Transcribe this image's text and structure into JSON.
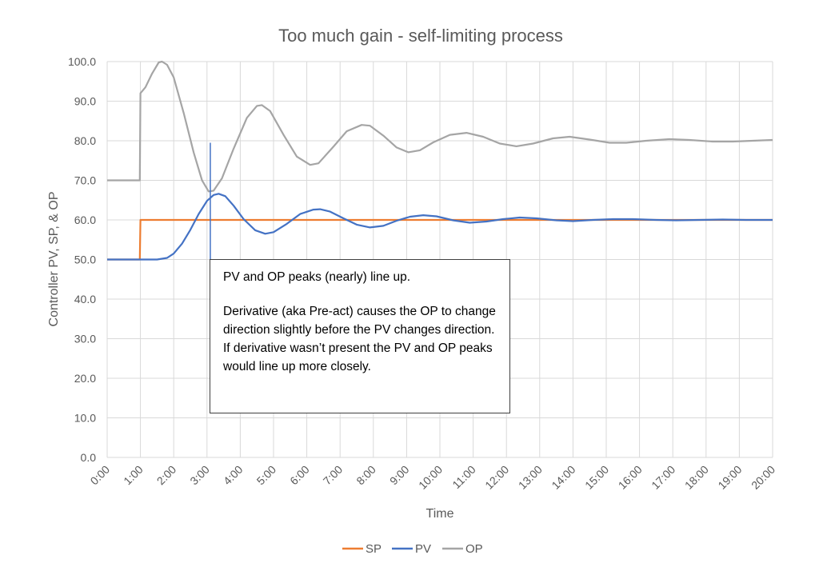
{
  "chart_data": {
    "type": "line",
    "title": "Too much gain - self-limiting process",
    "xlabel": "Time",
    "ylabel": "Controller PV, SP, & OP",
    "ylim": [
      0,
      100
    ],
    "yticks": [
      "0.0",
      "10.0",
      "20.0",
      "30.0",
      "40.0",
      "50.0",
      "60.0",
      "70.0",
      "80.0",
      "90.0",
      "100.0"
    ],
    "xlim": [
      0,
      20
    ],
    "xticks": [
      "0:00",
      "1:00",
      "2:00",
      "3:00",
      "4:00",
      "5:00",
      "6:00",
      "7:00",
      "8:00",
      "9:00",
      "10:00",
      "11:00",
      "12:00",
      "13:00",
      "14:00",
      "15:00",
      "16:00",
      "17:00",
      "18:00",
      "19:00",
      "20:00"
    ],
    "legend_position": "bottom",
    "series": [
      {
        "name": "SP",
        "color": "#ed7d31",
        "points": [
          [
            0,
            50
          ],
          [
            0.98,
            50
          ],
          [
            1.0,
            60
          ],
          [
            20,
            60
          ]
        ]
      },
      {
        "name": "PV",
        "color": "#4472c4",
        "points": [
          [
            0,
            50
          ],
          [
            1.0,
            50
          ],
          [
            1.5,
            50
          ],
          [
            1.8,
            50.4
          ],
          [
            2.0,
            51.5
          ],
          [
            2.25,
            54
          ],
          [
            2.5,
            57.5
          ],
          [
            2.75,
            61.5
          ],
          [
            3.0,
            64.8
          ],
          [
            3.2,
            66.3
          ],
          [
            3.35,
            66.6
          ],
          [
            3.55,
            66
          ],
          [
            3.8,
            63.6
          ],
          [
            4.1,
            60.2
          ],
          [
            4.45,
            57.4
          ],
          [
            4.75,
            56.5
          ],
          [
            5.0,
            56.9
          ],
          [
            5.4,
            59
          ],
          [
            5.8,
            61.5
          ],
          [
            6.2,
            62.6
          ],
          [
            6.4,
            62.7
          ],
          [
            6.7,
            62.1
          ],
          [
            7.1,
            60.4
          ],
          [
            7.5,
            58.8
          ],
          [
            7.9,
            58.1
          ],
          [
            8.3,
            58.5
          ],
          [
            8.7,
            59.8
          ],
          [
            9.1,
            60.8
          ],
          [
            9.5,
            61.2
          ],
          [
            9.9,
            60.9
          ],
          [
            10.4,
            59.9
          ],
          [
            10.9,
            59.3
          ],
          [
            11.4,
            59.6
          ],
          [
            11.9,
            60.2
          ],
          [
            12.4,
            60.6
          ],
          [
            12.9,
            60.4
          ],
          [
            13.5,
            59.9
          ],
          [
            14.0,
            59.7
          ],
          [
            14.6,
            60.0
          ],
          [
            15.2,
            60.2
          ],
          [
            15.8,
            60.2
          ],
          [
            16.5,
            60.0
          ],
          [
            17.1,
            59.9
          ],
          [
            17.8,
            60.0
          ],
          [
            18.5,
            60.1
          ],
          [
            19.2,
            60.0
          ],
          [
            20,
            60.0
          ]
        ]
      },
      {
        "name": "OP",
        "color": "#a5a5a5",
        "points": [
          [
            0,
            70
          ],
          [
            0.98,
            70
          ],
          [
            1.0,
            92
          ],
          [
            1.15,
            93.5
          ],
          [
            1.35,
            97
          ],
          [
            1.55,
            99.8
          ],
          [
            1.65,
            100
          ],
          [
            1.8,
            99.2
          ],
          [
            2.0,
            96
          ],
          [
            2.3,
            87
          ],
          [
            2.6,
            77
          ],
          [
            2.85,
            70
          ],
          [
            3.05,
            67.2
          ],
          [
            3.2,
            67.4
          ],
          [
            3.45,
            70.5
          ],
          [
            3.8,
            78
          ],
          [
            4.2,
            85.8
          ],
          [
            4.5,
            88.8
          ],
          [
            4.65,
            89
          ],
          [
            4.9,
            87.5
          ],
          [
            5.3,
            81.5
          ],
          [
            5.7,
            76
          ],
          [
            6.1,
            73.9
          ],
          [
            6.35,
            74.3
          ],
          [
            6.8,
            78.5
          ],
          [
            7.2,
            82.4
          ],
          [
            7.65,
            84
          ],
          [
            7.9,
            83.8
          ],
          [
            8.3,
            81.3
          ],
          [
            8.7,
            78.3
          ],
          [
            9.05,
            77.1
          ],
          [
            9.4,
            77.6
          ],
          [
            9.8,
            79.6
          ],
          [
            10.3,
            81.5
          ],
          [
            10.8,
            82
          ],
          [
            11.3,
            81
          ],
          [
            11.8,
            79.3
          ],
          [
            12.3,
            78.6
          ],
          [
            12.8,
            79.3
          ],
          [
            13.4,
            80.6
          ],
          [
            13.9,
            81
          ],
          [
            14.5,
            80.3
          ],
          [
            15.1,
            79.5
          ],
          [
            15.6,
            79.5
          ],
          [
            16.2,
            80
          ],
          [
            16.9,
            80.4
          ],
          [
            17.5,
            80.2
          ],
          [
            18.2,
            79.8
          ],
          [
            18.8,
            79.8
          ],
          [
            19.4,
            80
          ],
          [
            20,
            80.2
          ]
        ]
      }
    ],
    "annotation": {
      "line_x": 3.1,
      "line_y_top": 79.5,
      "line_y_bottom": 50,
      "paragraphs": [
        "PV and OP peaks (nearly) line up.",
        "Derivative (aka Pre-act) causes the OP to change direction slightly before the PV changes direction.  If derivative wasn’t present the PV and OP peaks would line up more closely."
      ],
      "line_color": "#4472c4"
    }
  }
}
